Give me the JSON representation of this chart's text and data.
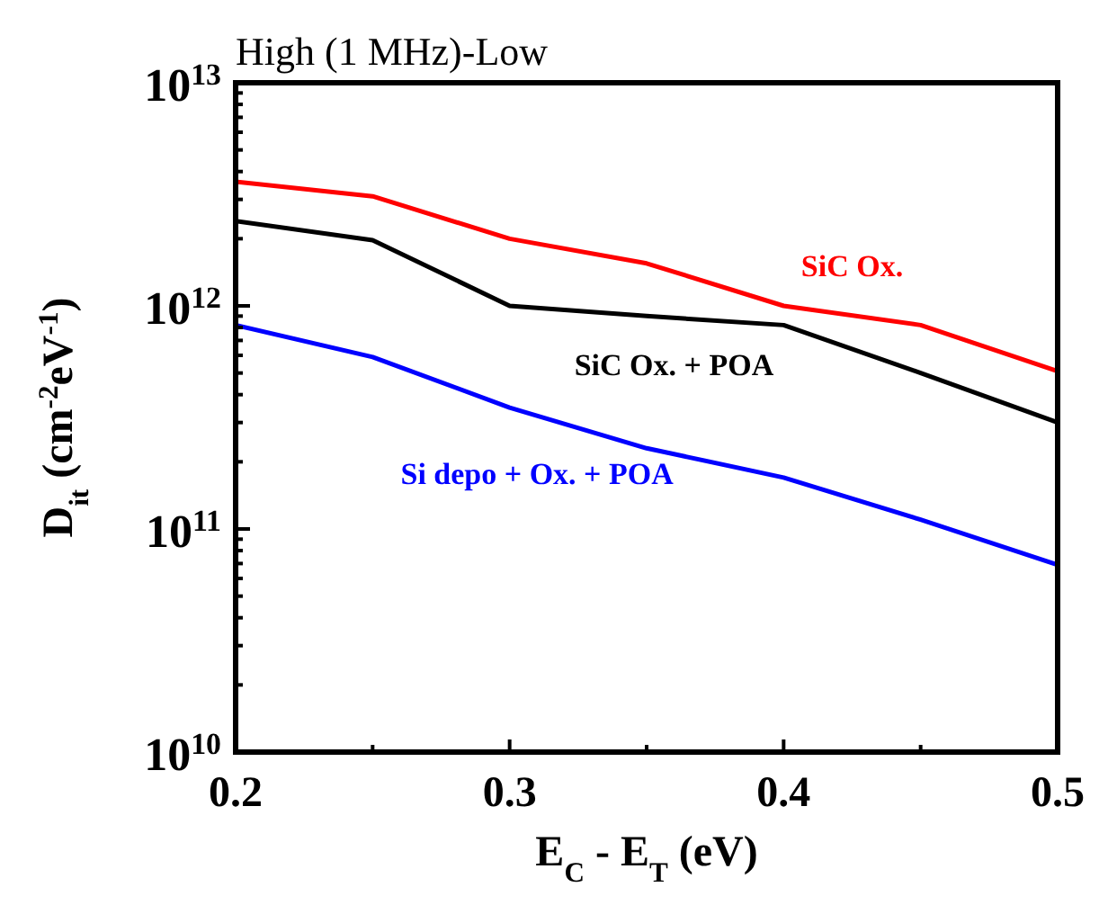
{
  "chart_data": {
    "type": "line",
    "title": "High (1 MHz)-Low",
    "xlabel": "E$_{C}$ - E$_{T}$ (eV)",
    "ylabel": "D$_{it}$ (cm$^{-2}$eV$^{-1}$)",
    "x": [
      0.2,
      0.25,
      0.3,
      0.35,
      0.4,
      0.45,
      0.5
    ],
    "series": [
      {
        "name": "SiC Ox.",
        "color": "#ff0000",
        "values": [
          3600000000000.0,
          3100000000000.0,
          2000000000000.0,
          1550000000000.0,
          1000000000000.0,
          820000000000.0,
          510000000000.0
        ]
      },
      {
        "name": "SiC Ox. + POA",
        "color": "#000000",
        "values": [
          2400000000000.0,
          1970000000000.0,
          1000000000000.0,
          900000000000.0,
          820000000000.0,
          500000000000.0,
          300000000000.0
        ]
      },
      {
        "name": "Si depo + Ox. + POA",
        "color": "#0000ff",
        "values": [
          820000000000.0,
          590000000000.0,
          350000000000.0,
          230000000000.0,
          170000000000.0,
          110000000000.0,
          69000000000.0
        ]
      }
    ],
    "log": "y",
    "xlim": [
      0.2,
      0.5
    ],
    "ylim": [
      10000000000.0,
      10000000000000.0
    ],
    "xticks": [
      0.2,
      {
        "value": 0.25,
        "label": null
      },
      0.3,
      {
        "value": 0.35,
        "label": null
      },
      0.4,
      {
        "value": 0.45,
        "label": null
      },
      0.5
    ],
    "yticks": [
      {
        "value": 10000000000.0,
        "label": "10$^{10}$"
      },
      {
        "value": 20000000000.0,
        "label": null
      },
      {
        "value": 30000000000.0,
        "label": null
      },
      {
        "value": 40000000000.0,
        "label": null
      },
      {
        "value": 50000000000.0,
        "label": null
      },
      {
        "value": 60000000000.0,
        "label": null
      },
      {
        "value": 70000000000.0,
        "label": null
      },
      {
        "value": 80000000000.0,
        "label": null
      },
      {
        "value": 90000000000.0,
        "label": null
      },
      {
        "value": 100000000000.0,
        "label": "10$^{11}$"
      },
      {
        "value": 200000000000.0,
        "label": null
      },
      {
        "value": 300000000000.0,
        "label": null
      },
      {
        "value": 400000000000.0,
        "label": null
      },
      {
        "value": 500000000000.0,
        "label": null
      },
      {
        "value": 600000000000.0,
        "label": null
      },
      {
        "value": 700000000000.0,
        "label": null
      },
      {
        "value": 800000000000.0,
        "label": null
      },
      {
        "value": 900000000000.0,
        "label": null
      },
      {
        "value": 1000000000000.0,
        "label": "10$^{12}$"
      },
      {
        "value": 2000000000000.0,
        "label": null
      },
      {
        "value": 3000000000000.0,
        "label": null
      },
      {
        "value": 4000000000000.0,
        "label": null
      },
      {
        "value": 5000000000000.0,
        "label": null
      },
      {
        "value": 6000000000000.0,
        "label": null
      },
      {
        "value": 7000000000000.0,
        "label": null
      },
      {
        "value": 8000000000000.0,
        "label": null
      },
      {
        "value": 9000000000000.0,
        "label": null
      },
      {
        "value": 10000000000000.0,
        "label": "10$^{13}$"
      }
    ],
    "grid": false,
    "legend": false,
    "marker": "none",
    "line_style": "solid"
  }
}
